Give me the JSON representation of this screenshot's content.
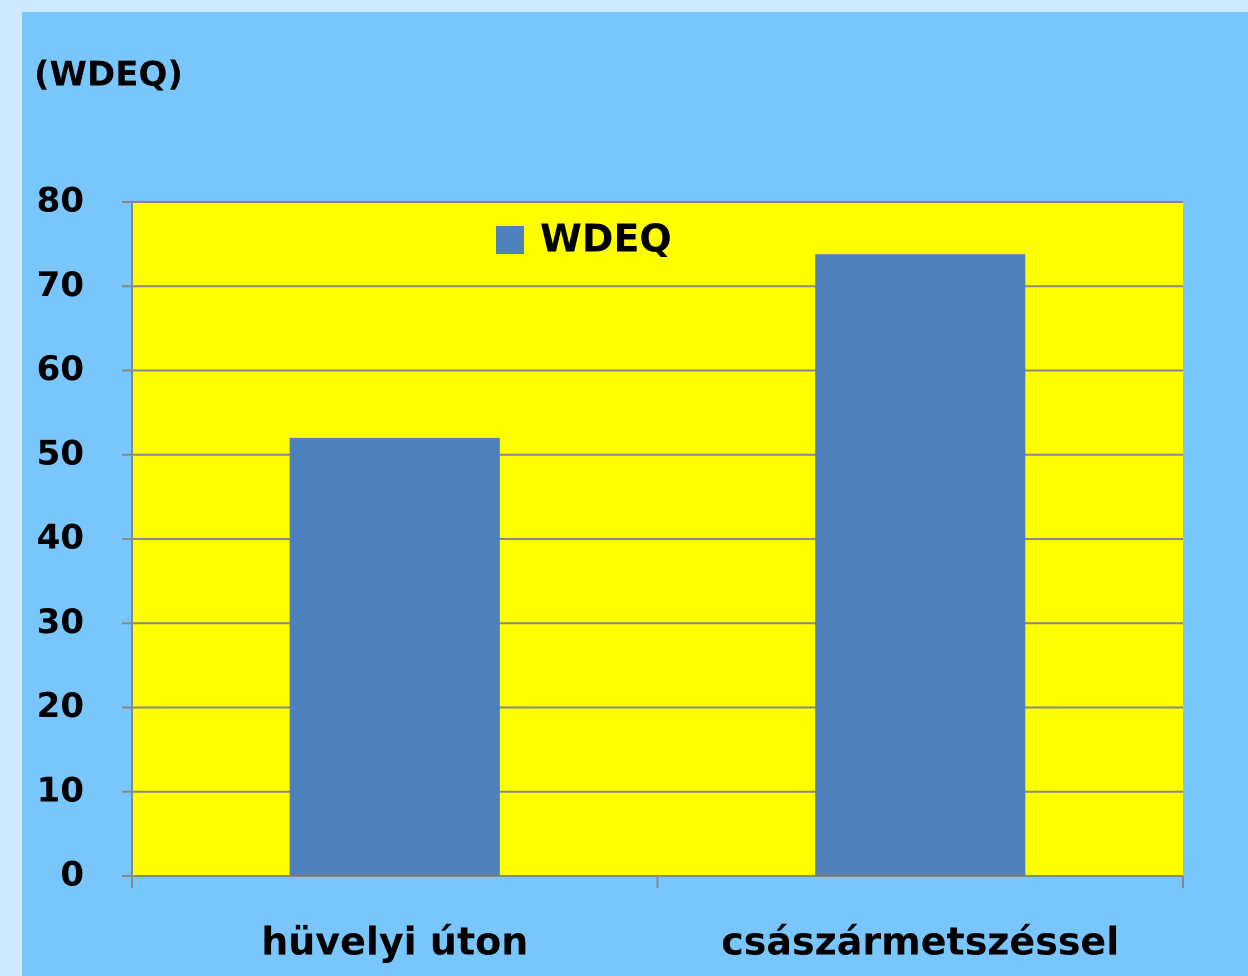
{
  "chart_data": {
    "type": "bar",
    "y_axis_label": "(WDEQ)",
    "categories": [
      "hüvelyi úton",
      "császármetszéssel"
    ],
    "series": [
      {
        "name": "WDEQ",
        "color": "#4f81bd",
        "values": [
          52,
          73.8
        ]
      }
    ],
    "ylim": [
      0,
      80
    ],
    "yticks": [
      0,
      10,
      20,
      30,
      40,
      50,
      60,
      70,
      80
    ],
    "grid": true,
    "legend": "top"
  }
}
